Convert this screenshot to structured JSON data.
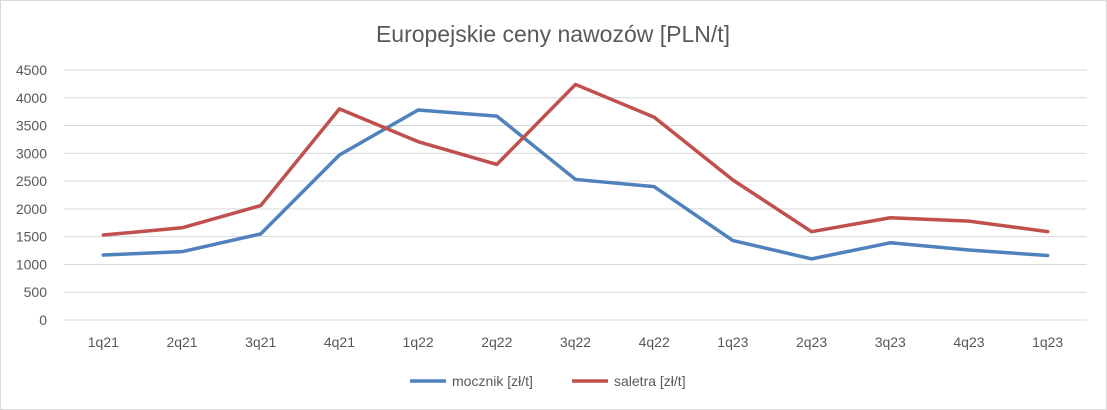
{
  "chart_data": {
    "type": "line",
    "title": "Europejskie ceny nawozów [PLN/t]",
    "xlabel": "",
    "ylabel": "",
    "categories": [
      "1q21",
      "2q21",
      "3q21",
      "4q21",
      "1q22",
      "2q22",
      "3q22",
      "4q22",
      "1q23",
      "2q23",
      "3q23",
      "4q23",
      "1q23"
    ],
    "ylim": [
      0,
      4500
    ],
    "yticks": [
      0,
      500,
      1000,
      1500,
      2000,
      2500,
      3000,
      3500,
      4000,
      4500
    ],
    "grid": true,
    "legend_position": "bottom",
    "series": [
      {
        "name": "mocznik [zł/t]",
        "color": "#4f81bd",
        "values": [
          1170,
          1230,
          1550,
          2970,
          3780,
          3670,
          2530,
          2400,
          1430,
          1100,
          1390,
          1260,
          1160
        ]
      },
      {
        "name": "saletra [zł/t]",
        "color": "#c0504d",
        "values": [
          1530,
          1660,
          2060,
          3800,
          3210,
          2800,
          4240,
          3650,
          2520,
          1590,
          1840,
          1780,
          1590
        ]
      }
    ]
  }
}
